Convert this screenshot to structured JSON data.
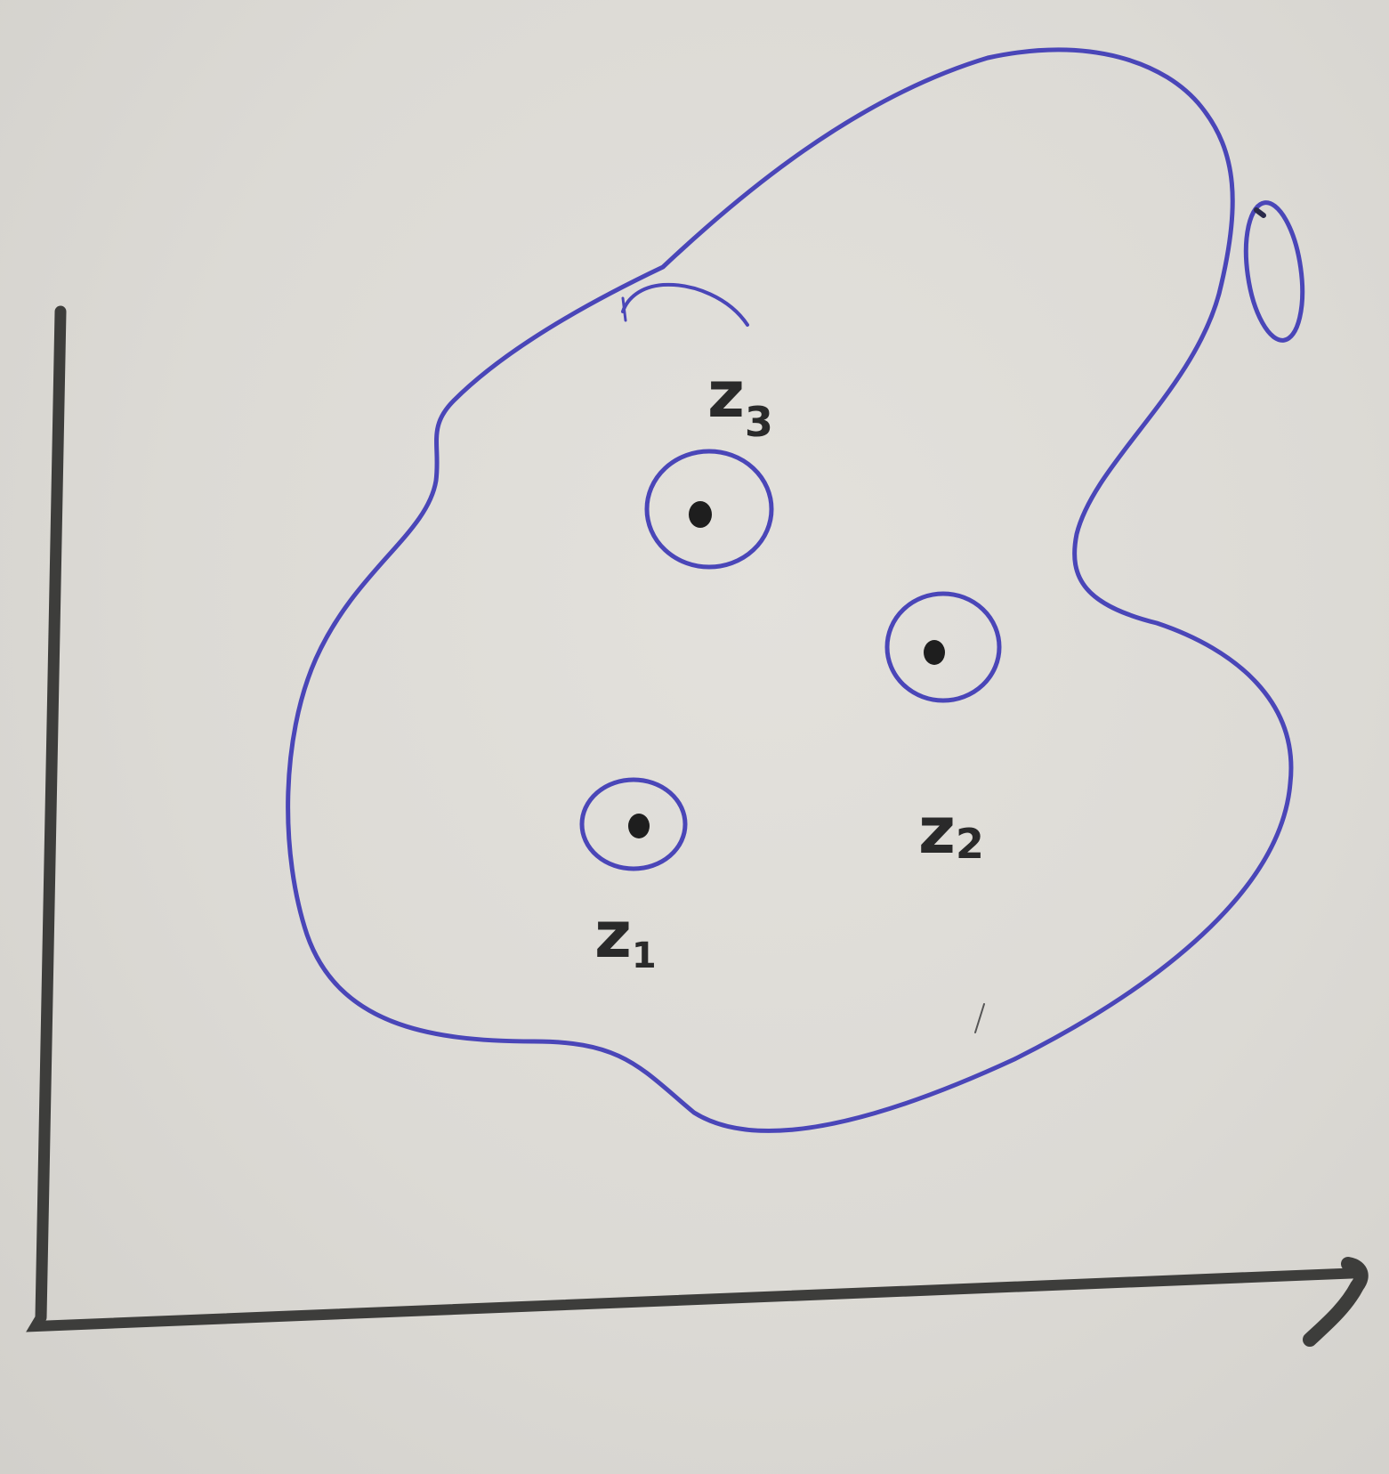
{
  "colors": {
    "paper": "#dcdad5",
    "pencil": "#3d3d3b",
    "ink_blue": "#4a46b8",
    "ink_black": "#1e1e1e"
  },
  "labels": {
    "z1": {
      "main": "z",
      "sub": "1"
    },
    "z2": {
      "main": "z",
      "sub": "2"
    },
    "z3": {
      "main": "z",
      "sub": "3"
    }
  }
}
